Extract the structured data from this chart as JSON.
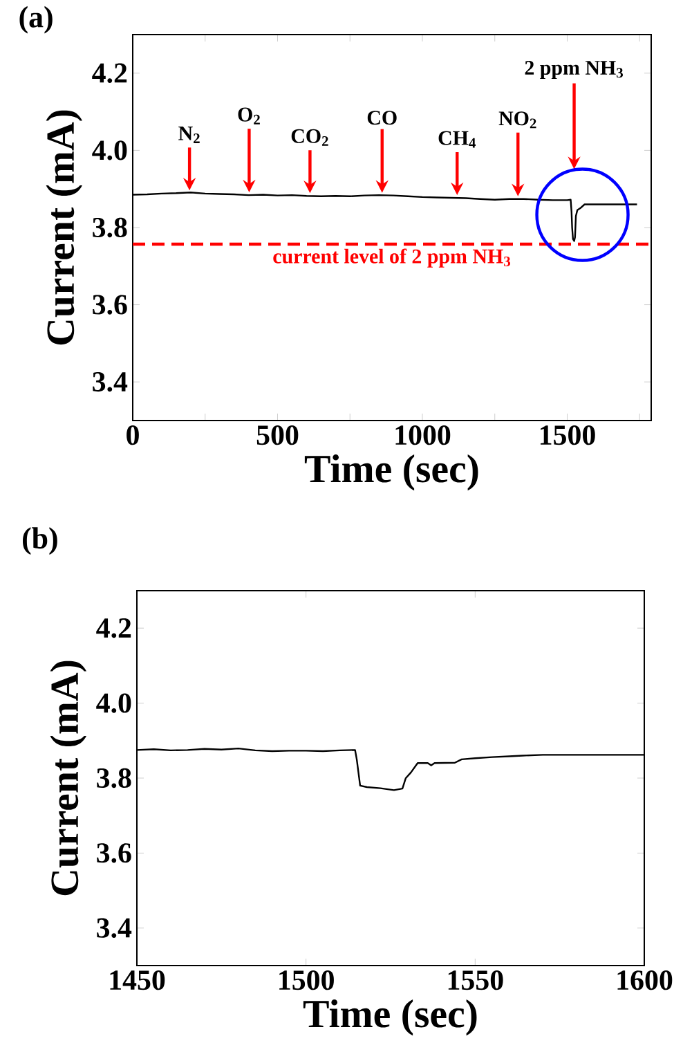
{
  "chart_data": [
    {
      "type": "line",
      "title": "(a)",
      "xlabel": "Time (sec)",
      "ylabel": "Current (mA)",
      "xlim": [
        0,
        1790
      ],
      "ylim": [
        3.3,
        4.3
      ],
      "xticks": [
        0,
        {
          "value": 250,
          "label": null
        },
        500,
        {
          "value": 750,
          "label": null
        },
        1000,
        {
          "value": 1250,
          "label": null
        },
        1500,
        {
          "value": 1750,
          "label": null
        }
      ],
      "yticks": [
        3.4,
        3.6,
        3.8,
        {
          "value": 4.0,
          "label": "4.0"
        },
        4.2
      ],
      "series": [
        {
          "color": "#000000",
          "x": [
            0,
            50,
            100,
            150,
            200,
            250,
            300,
            350,
            400,
            450,
            500,
            550,
            600,
            650,
            700,
            750,
            800,
            850,
            900,
            950,
            1000,
            1050,
            1100,
            1150,
            1200,
            1250,
            1300,
            1350,
            1400,
            1450,
            1500,
            1512,
            1515,
            1517,
            1520,
            1524,
            1527,
            1530,
            1535,
            1545,
            1560,
            1600,
            1650,
            1700,
            1741
          ],
          "values": [
            3.885,
            3.886,
            3.888,
            3.889,
            3.891,
            3.888,
            3.887,
            3.886,
            3.884,
            3.885,
            3.883,
            3.884,
            3.882,
            3.881,
            3.882,
            3.881,
            3.883,
            3.884,
            3.883,
            3.881,
            3.879,
            3.878,
            3.877,
            3.876,
            3.874,
            3.872,
            3.874,
            3.874,
            3.872,
            3.871,
            3.871,
            3.872,
            3.84,
            3.8,
            3.77,
            3.765,
            3.775,
            3.83,
            3.845,
            3.85,
            3.86,
            3.86,
            3.86,
            3.86,
            3.86
          ]
        }
      ],
      "ref_lines": [
        {
          "axis": "y",
          "value": 3.757,
          "label": "current level of 2 ppm NH$_{3}$",
          "color": "#ff0000",
          "line_style": "dashed"
        }
      ],
      "annotations": [
        {
          "text": "N$_{2}$",
          "x": 196,
          "y": 3.889
        },
        {
          "text": "O$_{2}$",
          "x": 402,
          "y": 3.884
        },
        {
          "text": "CO$_{2}$",
          "x": 612,
          "y": 3.882
        },
        {
          "text": "CO",
          "x": 861,
          "y": 3.883
        },
        {
          "text": "CH$_{4}$",
          "x": 1120,
          "y": 3.877
        },
        {
          "text": "NO$_{2}$",
          "x": 1330,
          "y": 3.874
        },
        "2 ppm NH$_{3}$"
      ]
    },
    {
      "type": "line",
      "title": "(b)",
      "xlabel": "Time (sec)",
      "ylabel": "Current (mA)",
      "xlim": [
        1450,
        1600
      ],
      "ylim": [
        3.3,
        4.3
      ],
      "xticks": [
        1450,
        1500,
        1550,
        1600
      ],
      "yticks": [
        3.4,
        3.6,
        3.8,
        {
          "value": 4.0,
          "label": "4.0"
        },
        4.2
      ],
      "series": [
        {
          "color": "#000000",
          "x": [
            1450,
            1455,
            1460,
            1465,
            1470,
            1475,
            1480,
            1485,
            1490,
            1495,
            1500,
            1505,
            1510,
            1514.5,
            1515,
            1516,
            1518,
            1522,
            1526,
            1528.5,
            1529.5,
            1531,
            1533,
            1536,
            1537,
            1538,
            1544,
            1546,
            1550,
            1555,
            1560,
            1564,
            1570,
            1600
          ],
          "values": [
            3.875,
            3.877,
            3.874,
            3.875,
            3.878,
            3.876,
            3.879,
            3.874,
            3.872,
            3.873,
            3.873,
            3.872,
            3.874,
            3.875,
            3.85,
            3.78,
            3.776,
            3.773,
            3.768,
            3.772,
            3.8,
            3.815,
            3.84,
            3.84,
            3.834,
            3.84,
            3.841,
            3.85,
            3.853,
            3.856,
            3.858,
            3.86,
            3.862,
            3.862
          ]
        }
      ]
    }
  ]
}
